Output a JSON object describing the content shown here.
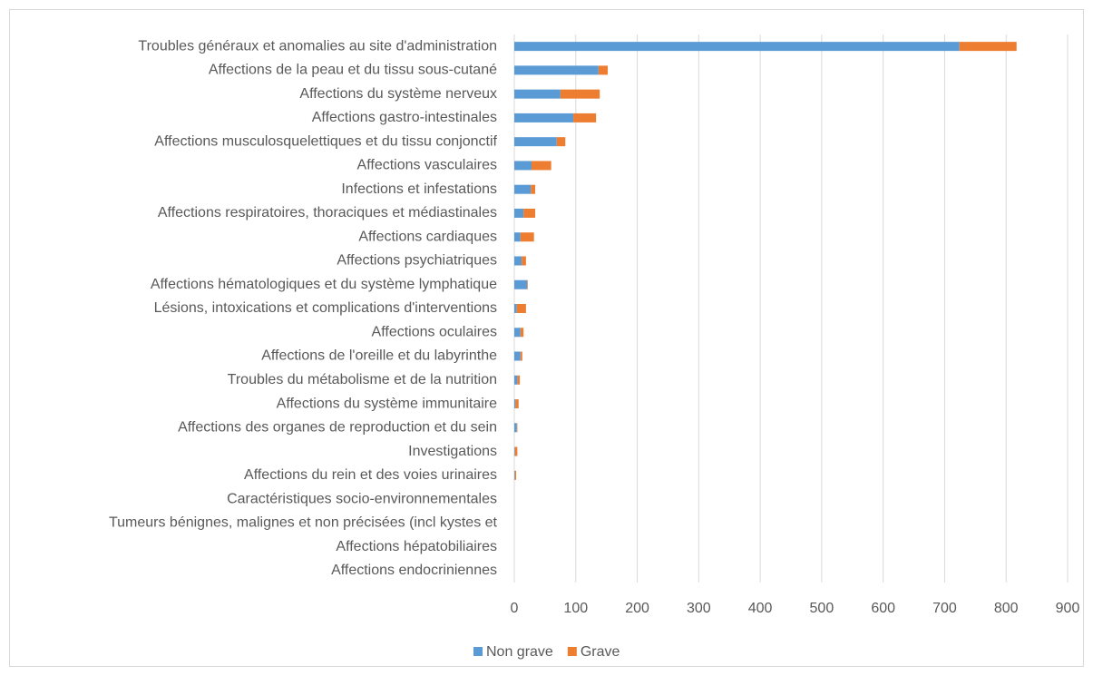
{
  "chart_data": {
    "type": "stacked_barh",
    "categories": [
      "Troubles généraux et anomalies au site d'administration",
      "Affections de la peau et du tissu sous-cutané",
      "Affections du système nerveux",
      "Affections gastro-intestinales",
      "Affections musculosquelettiques et du tissu conjonctif",
      "Affections vasculaires",
      "Infections et infestations",
      "Affections respiratoires, thoraciques et médiastinales",
      "Affections cardiaques",
      "Affections psychiatriques",
      "Affections hématologiques et du système lymphatique",
      "Lésions, intoxications et complications d'interventions",
      "Affections oculaires",
      "Affections de l'oreille et du labyrinthe",
      "Troubles du métabolisme et de la nutrition",
      "Affections du système immunitaire",
      "Affections des organes de reproduction et du sein",
      "Investigations",
      "Affections du rein et des voies urinaires",
      "Caractéristiques socio-environnementales",
      "Tumeurs bénignes, malignes et non précisées (incl kystes et",
      "Affections hépatobiliaires",
      "Affections endocriniennes"
    ],
    "series": [
      {
        "name": "Non grave",
        "color": "#5b9bd5",
        "values": [
          724,
          137,
          75,
          96,
          69,
          28,
          27,
          15,
          10,
          12,
          21,
          4,
          10,
          10,
          5,
          2,
          4,
          1,
          1,
          0,
          0,
          0,
          0
        ]
      },
      {
        "name": "Grave",
        "color": "#ed7d31",
        "values": [
          93,
          15,
          64,
          37,
          14,
          32,
          7,
          19,
          22,
          7,
          1,
          15,
          5,
          3,
          4,
          5,
          1,
          4,
          2,
          0,
          0,
          0,
          0
        ]
      }
    ],
    "xlim": [
      0,
      900
    ],
    "xticks": [
      0,
      100,
      200,
      300,
      400,
      500,
      600,
      700,
      800,
      900
    ],
    "grid": true,
    "legend": "bottom"
  }
}
